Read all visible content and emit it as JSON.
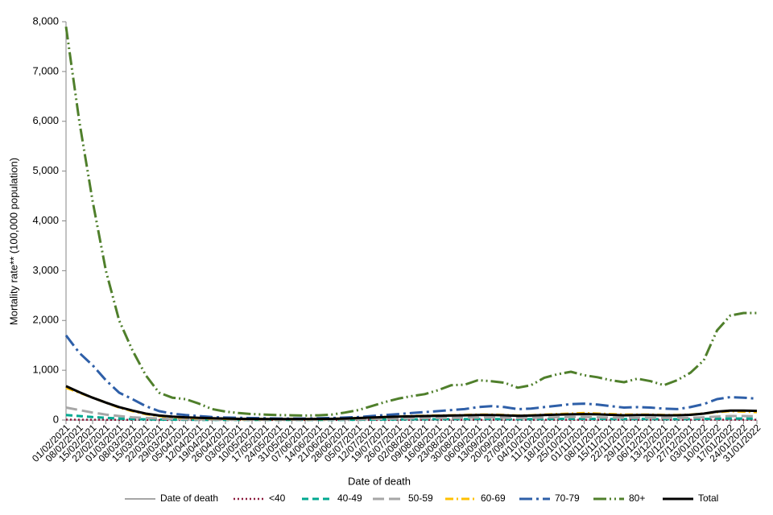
{
  "chart_data": {
    "type": "line",
    "y_label": "Mortality rate** (100,000 population)",
    "x_label": "Date of death",
    "categories": [
      "01/02/2021",
      "08/02/2021",
      "15/02/2021",
      "22/02/2021",
      "01/03/2021",
      "08/03/2021",
      "15/03/2021",
      "22/03/2021",
      "29/03/2021",
      "05/04/2021",
      "12/04/2021",
      "19/04/2021",
      "26/04/2021",
      "03/05/2021",
      "10/05/2021",
      "17/05/2021",
      "24/05/2021",
      "31/05/2021",
      "07/06/2021",
      "14/06/2021",
      "21/06/2021",
      "28/06/2021",
      "05/07/2021",
      "12/07/2021",
      "19/07/2021",
      "26/07/2021",
      "02/08/2021",
      "09/08/2021",
      "16/08/2021",
      "23/08/2021",
      "30/08/2021",
      "06/09/2021",
      "13/09/2021",
      "20/09/2021",
      "27/09/2021",
      "04/10/2021",
      "11/10/2021",
      "18/10/2021",
      "25/10/2021",
      "01/11/2021",
      "08/11/2021",
      "15/11/2021",
      "22/11/2021",
      "29/11/2021",
      "06/12/2021",
      "13/12/2021",
      "20/12/2021",
      "27/12/2021",
      "03/01/2022",
      "10/01/2022",
      "17/01/2022",
      "24/01/2022",
      "31/01/2022"
    ],
    "ylim": [
      0,
      8000
    ],
    "yticks": [
      0,
      {
        "value": 1000,
        "label": "1,000"
      },
      {
        "value": 2000,
        "label": "2,000"
      },
      {
        "value": 3000,
        "label": "3,000"
      },
      {
        "value": 4000,
        "label": "4,000"
      },
      {
        "value": 5000,
        "label": "5,000"
      },
      {
        "value": 6000,
        "label": "6,000"
      },
      {
        "value": 7000,
        "label": "7,000"
      },
      {
        "value": 8000,
        "label": "8,000"
      }
    ],
    "legend": "bottom",
    "series": [
      {
        "name": "Date of death",
        "color": "#a6a6a6",
        "dash": "none",
        "width": 2,
        "values": [
          null,
          null,
          null,
          null,
          null,
          null,
          null,
          null,
          null,
          null,
          null,
          null,
          null,
          null,
          null,
          null,
          null,
          null,
          null,
          null,
          null,
          null,
          null,
          null,
          null,
          null,
          null,
          null,
          null,
          null,
          null,
          null,
          null,
          null,
          null,
          null,
          null,
          null,
          null,
          null,
          null,
          null,
          null,
          null,
          null,
          null,
          null,
          null,
          null,
          null,
          null,
          null,
          null
        ]
      },
      {
        "name": "<40",
        "color": "#8b1a3c",
        "dash": "2,3",
        "width": 2.5,
        "values": [
          8,
          7,
          6,
          5,
          4,
          3,
          3,
          2,
          2,
          2,
          2,
          1,
          1,
          1,
          1,
          1,
          1,
          1,
          1,
          1,
          1,
          1,
          2,
          2,
          2,
          3,
          3,
          3,
          3,
          3,
          3,
          4,
          4,
          4,
          3,
          3,
          4,
          4,
          4,
          4,
          4,
          4,
          3,
          3,
          3,
          3,
          3,
          4,
          5,
          6,
          7,
          7,
          6
        ]
      },
      {
        "name": "40-49",
        "color": "#00a891",
        "dash": "8,5",
        "width": 3,
        "values": [
          100,
          80,
          60,
          45,
          30,
          20,
          15,
          10,
          8,
          6,
          5,
          4,
          4,
          3,
          3,
          3,
          3,
          3,
          3,
          3,
          4,
          5,
          6,
          8,
          10,
          12,
          14,
          15,
          16,
          17,
          18,
          20,
          20,
          18,
          16,
          17,
          20,
          22,
          24,
          25,
          23,
          21,
          19,
          19,
          19,
          18,
          17,
          19,
          22,
          28,
          30,
          30,
          28
        ]
      },
      {
        "name": "50-59",
        "color": "#a6a6a6",
        "dash": "14,6",
        "width": 3,
        "values": [
          250,
          200,
          150,
          110,
          80,
          55,
          40,
          30,
          20,
          15,
          12,
          10,
          8,
          8,
          7,
          7,
          7,
          7,
          7,
          8,
          10,
          12,
          15,
          20,
          25,
          30,
          35,
          38,
          40,
          42,
          45,
          50,
          50,
          45,
          40,
          42,
          50,
          55,
          60,
          60,
          55,
          50,
          45,
          45,
          45,
          42,
          40,
          45,
          55,
          70,
          80,
          80,
          75
        ]
      },
      {
        "name": "60-69",
        "color": "#ffc000",
        "dash": "10,4,2,4",
        "width": 3,
        "values": [
          650,
          550,
          450,
          350,
          250,
          180,
          120,
          80,
          60,
          45,
          35,
          30,
          25,
          20,
          20,
          20,
          20,
          20,
          20,
          20,
          25,
          30,
          40,
          50,
          60,
          70,
          80,
          85,
          90,
          95,
          100,
          110,
          110,
          100,
          90,
          95,
          110,
          120,
          130,
          140,
          130,
          120,
          110,
          110,
          110,
          100,
          100,
          110,
          130,
          160,
          180,
          170,
          160
        ]
      },
      {
        "name": "70-79",
        "color": "#2e5fa8",
        "dash": "16,5,3,5",
        "width": 3,
        "values": [
          1700,
          1350,
          1100,
          800,
          550,
          420,
          280,
          180,
          130,
          100,
          80,
          60,
          50,
          45,
          40,
          35,
          30,
          30,
          30,
          35,
          40,
          50,
          60,
          80,
          100,
          120,
          140,
          160,
          180,
          200,
          220,
          260,
          280,
          260,
          220,
          230,
          260,
          290,
          320,
          330,
          310,
          280,
          250,
          260,
          250,
          230,
          220,
          260,
          320,
          420,
          460,
          450,
          430
        ]
      },
      {
        "name": "80+",
        "color": "#4f7f2b",
        "dash": "16,4,2,4,2,4",
        "width": 3,
        "values": [
          7900,
          6000,
          4400,
          3000,
          2000,
          1400,
          900,
          550,
          450,
          420,
          330,
          220,
          170,
          140,
          120,
          110,
          100,
          95,
          90,
          95,
          110,
          150,
          200,
          280,
          360,
          430,
          480,
          520,
          600,
          700,
          710,
          800,
          780,
          750,
          650,
          700,
          850,
          920,
          970,
          900,
          860,
          800,
          760,
          830,
          780,
          700,
          800,
          950,
          1200,
          1800,
          2100,
          2150,
          2150
        ]
      },
      {
        "name": "Total",
        "color": "#000000",
        "dash": "none",
        "width": 3,
        "values": [
          680,
          560,
          450,
          350,
          260,
          190,
          130,
          90,
          70,
          55,
          45,
          35,
          30,
          25,
          22,
          20,
          20,
          20,
          20,
          22,
          25,
          30,
          40,
          50,
          60,
          70,
          75,
          80,
          85,
          90,
          95,
          100,
          100,
          95,
          85,
          90,
          100,
          110,
          115,
          120,
          115,
          105,
          95,
          100,
          100,
          95,
          95,
          105,
          130,
          170,
          190,
          190,
          185
        ]
      }
    ]
  }
}
